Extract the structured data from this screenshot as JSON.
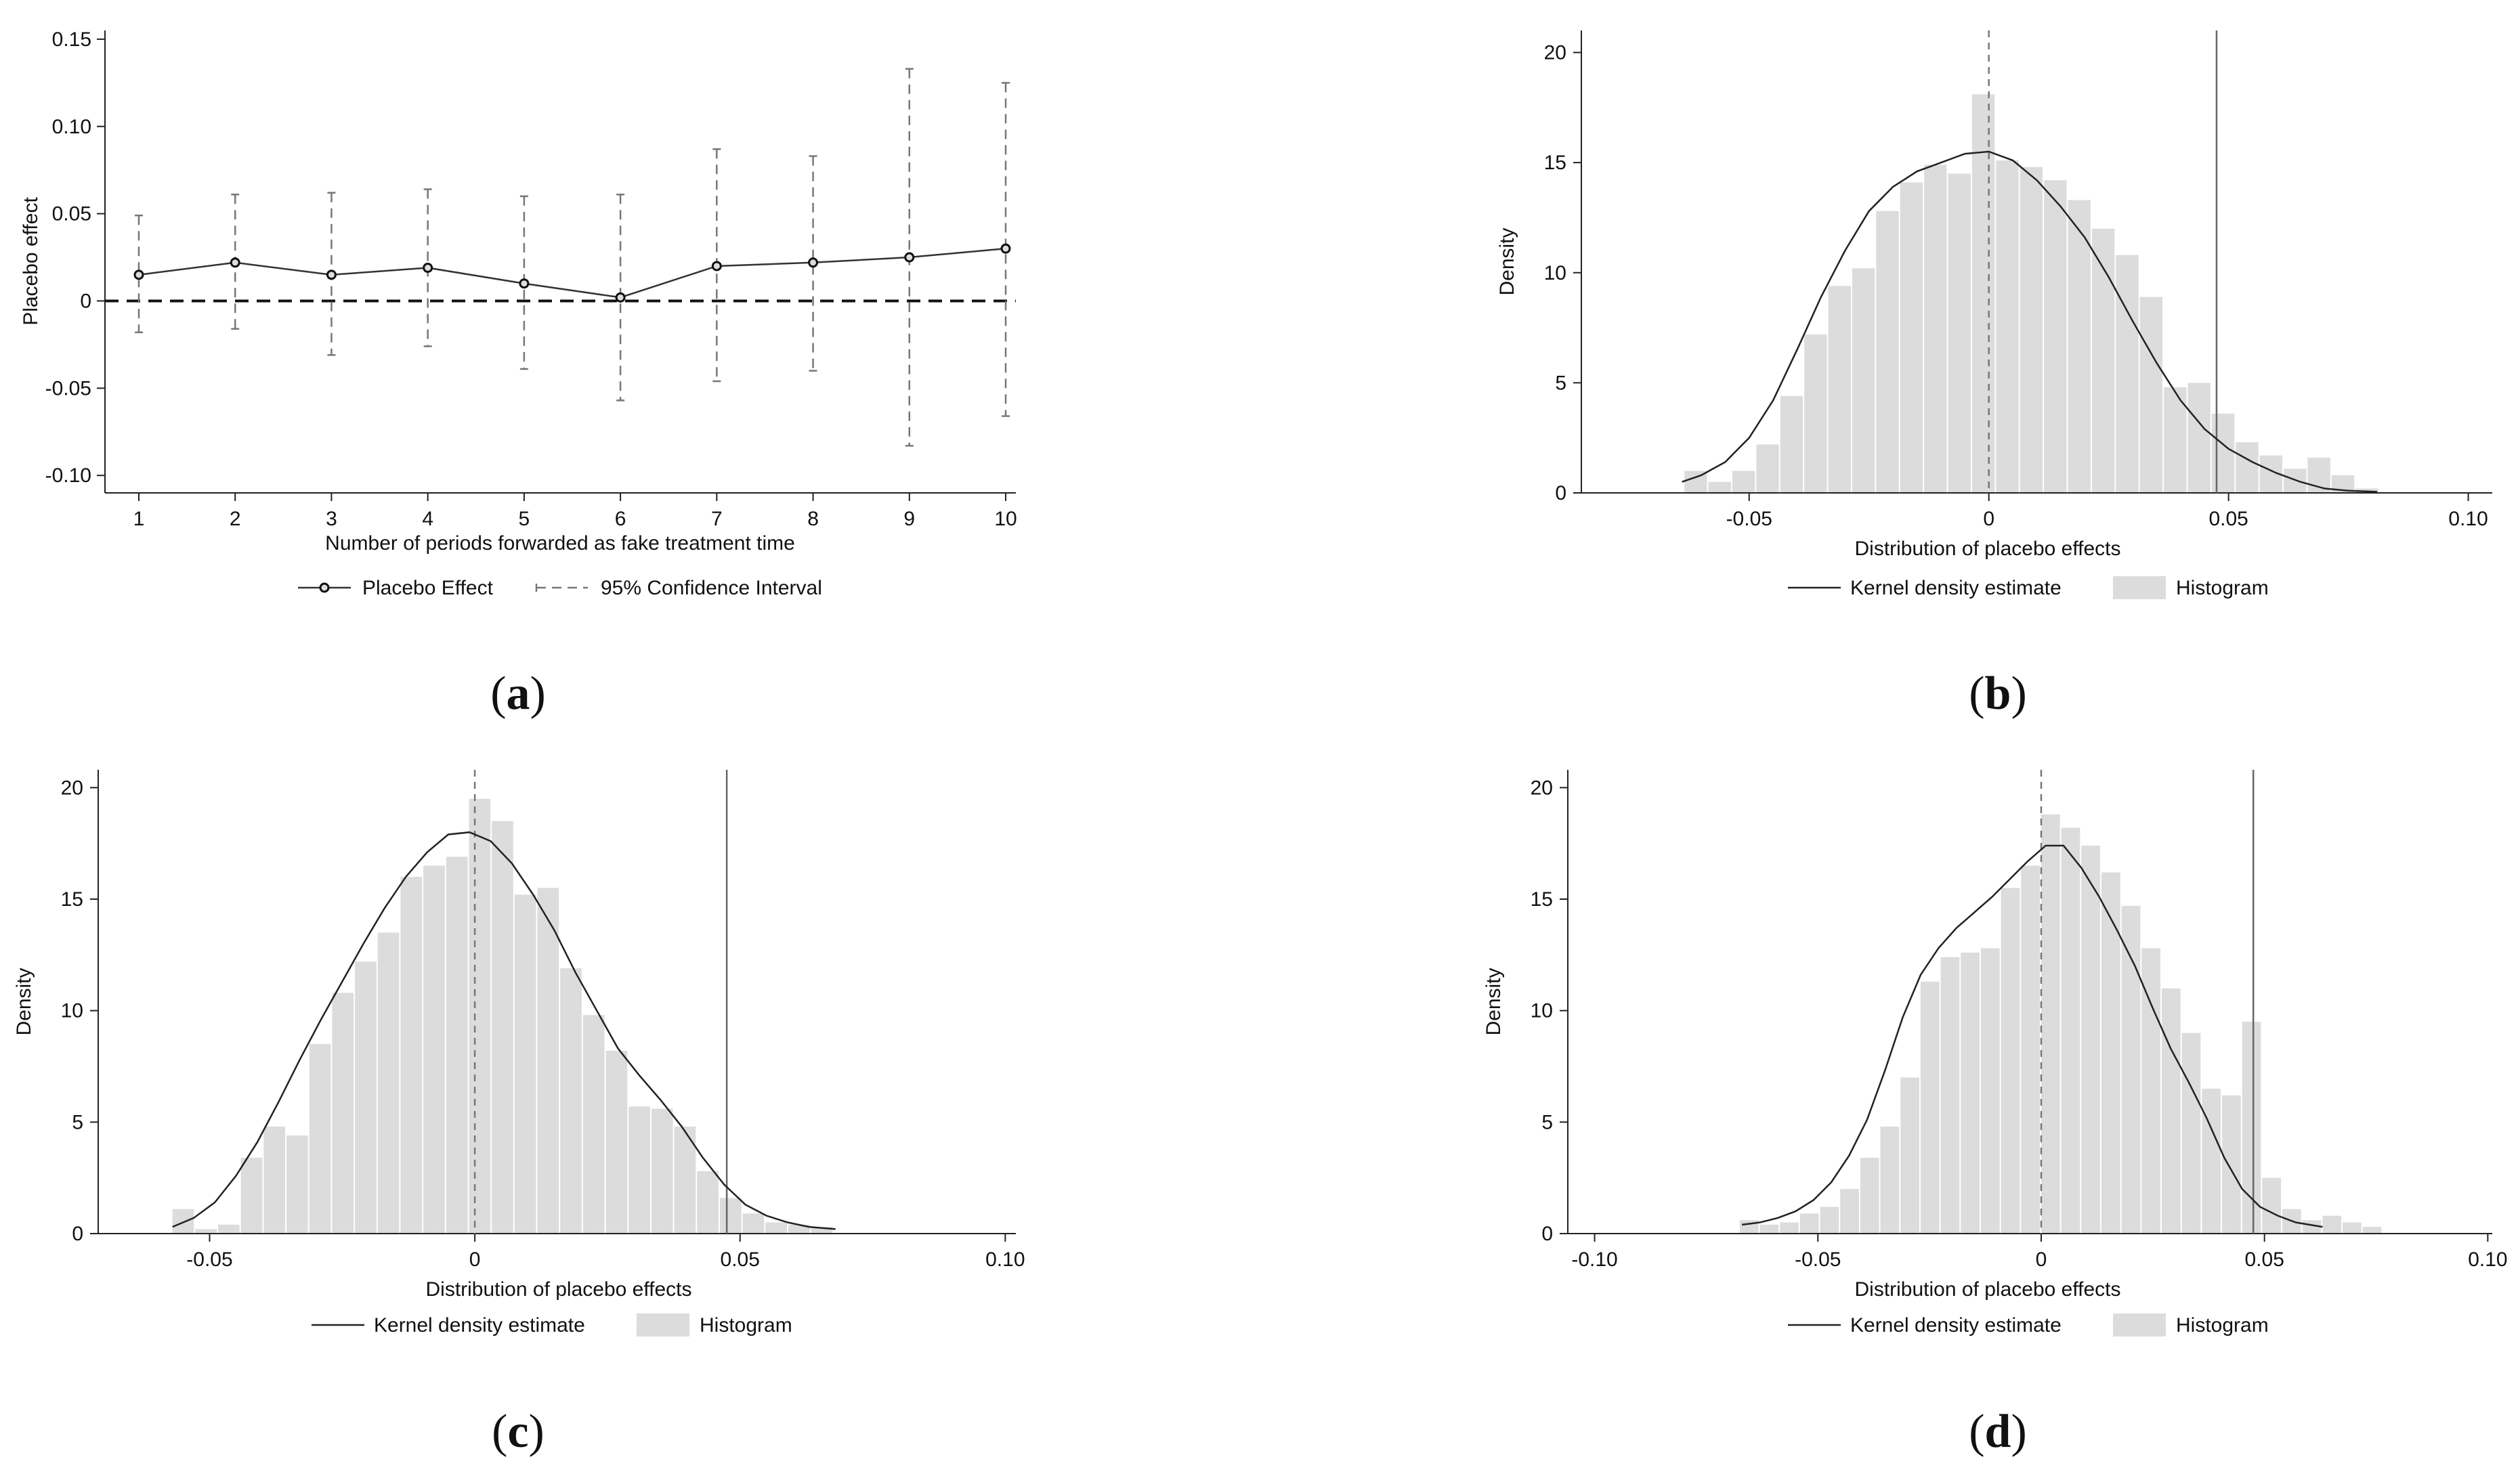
{
  "chart_data": [
    {
      "id": "a",
      "type": "line",
      "caption": "a",
      "xlabel": "Number of periods forwarded as fake treatment time",
      "ylabel": "Placebo effect",
      "x": [
        1,
        2,
        3,
        4,
        5,
        6,
        7,
        8,
        9,
        10
      ],
      "xticks": [
        1,
        2,
        3,
        4,
        5,
        6,
        7,
        8,
        9,
        10
      ],
      "xtick_labels": [
        "1",
        "2",
        "3",
        "4",
        "5",
        "6",
        "7",
        "8",
        "9",
        "10"
      ],
      "ylim": [
        -0.11,
        0.155
      ],
      "yticks": [
        -0.1,
        -0.05,
        0,
        0.05,
        0.1,
        0.15
      ],
      "ytick_labels": [
        "-0.10",
        "-0.05",
        "0",
        "0.05",
        "0.10",
        "0.15"
      ],
      "series": [
        {
          "name": "Placebo Effect",
          "values": [
            0.015,
            0.022,
            0.015,
            0.019,
            0.01,
            0.002,
            0.02,
            0.022,
            0.025,
            0.03
          ]
        },
        {
          "name": "95% Confidence Interval",
          "lower": [
            -0.018,
            -0.016,
            -0.031,
            -0.026,
            -0.039,
            -0.057,
            -0.046,
            -0.04,
            -0.083,
            -0.066
          ],
          "upper": [
            0.049,
            0.061,
            0.062,
            0.064,
            0.06,
            0.061,
            0.087,
            0.083,
            0.133,
            0.125
          ]
        }
      ],
      "reference_line_y": 0,
      "legend": [
        "Placebo Effect",
        "95% Confidence Interval"
      ]
    },
    {
      "id": "b",
      "type": "bar",
      "caption": "b",
      "xlabel": "Distribution of placebo effects",
      "ylabel": "Density",
      "xlim": [
        -0.085,
        0.105
      ],
      "ylim": [
        0,
        21
      ],
      "xticks": [
        -0.05,
        0,
        0.05,
        0.1
      ],
      "xtick_labels": [
        "-0.05",
        "0",
        "0.05",
        "0.10"
      ],
      "yticks": [
        0,
        5,
        10,
        15,
        20
      ],
      "ytick_labels": [
        "0",
        "5",
        "10",
        "15",
        "20"
      ],
      "bin_start": -0.0635,
      "bin_width": 0.005,
      "histogram": [
        1.0,
        0.5,
        1.0,
        2.2,
        4.4,
        7.2,
        9.4,
        10.2,
        12.8,
        14.1,
        14.9,
        14.5,
        18.1,
        15.1,
        14.8,
        14.2,
        13.3,
        12.0,
        10.8,
        8.9,
        4.8,
        5.0,
        3.6,
        2.3,
        1.7,
        1.1,
        1.6,
        0.8,
        0.2
      ],
      "kde_x": [
        -0.064,
        -0.06,
        -0.055,
        -0.05,
        -0.045,
        -0.04,
        -0.035,
        -0.03,
        -0.025,
        -0.02,
        -0.015,
        -0.01,
        -0.005,
        0.0,
        0.005,
        0.01,
        0.015,
        0.02,
        0.025,
        0.03,
        0.035,
        0.04,
        0.045,
        0.05,
        0.055,
        0.06,
        0.065,
        0.07,
        0.075,
        0.081
      ],
      "kde_y": [
        0.5,
        0.8,
        1.4,
        2.5,
        4.2,
        6.5,
        8.9,
        11.0,
        12.8,
        13.9,
        14.6,
        15.0,
        15.4,
        15.5,
        15.1,
        14.2,
        13.0,
        11.6,
        9.8,
        7.8,
        5.9,
        4.2,
        2.9,
        2.0,
        1.4,
        0.9,
        0.5,
        0.2,
        0.1,
        0.05
      ],
      "reference_line_dashed": 0,
      "reference_line_solid": 0.0475,
      "legend": [
        "Kernel density estimate",
        "Histogram"
      ]
    },
    {
      "id": "c",
      "type": "bar",
      "caption": "c",
      "xlabel": "Distribution of placebo effects",
      "ylabel": "Density",
      "xlim": [
        -0.071,
        0.102
      ],
      "ylim": [
        0,
        20.8
      ],
      "xticks": [
        -0.05,
        0,
        0.05,
        0.1
      ],
      "xtick_labels": [
        "-0.05",
        "0",
        "0.05",
        "0.10"
      ],
      "yticks": [
        0,
        5,
        10,
        15,
        20
      ],
      "ytick_labels": [
        "0",
        "5",
        "10",
        "15",
        "20"
      ],
      "bin_start": -0.057,
      "bin_width": 0.0043,
      "histogram": [
        1.1,
        0.2,
        0.4,
        3.4,
        4.8,
        4.4,
        8.5,
        10.8,
        12.2,
        13.5,
        16.0,
        16.5,
        16.9,
        19.5,
        18.5,
        15.2,
        15.5,
        11.9,
        9.8,
        8.2,
        5.7,
        5.6,
        4.8,
        2.8,
        1.6,
        0.9,
        0.5,
        0.4,
        0.3
      ],
      "kde_x": [
        -0.057,
        -0.053,
        -0.049,
        -0.045,
        -0.041,
        -0.037,
        -0.033,
        -0.029,
        -0.025,
        -0.021,
        -0.017,
        -0.013,
        -0.009,
        -0.005,
        -0.001,
        0.003,
        0.007,
        0.011,
        0.015,
        0.019,
        0.023,
        0.027,
        0.031,
        0.035,
        0.039,
        0.043,
        0.047,
        0.051,
        0.055,
        0.059,
        0.063,
        0.068
      ],
      "kde_y": [
        0.3,
        0.7,
        1.4,
        2.6,
        4.1,
        5.9,
        7.8,
        9.6,
        11.3,
        13.0,
        14.6,
        16.0,
        17.1,
        17.9,
        18.0,
        17.6,
        16.6,
        15.2,
        13.6,
        11.7,
        10.0,
        8.3,
        7.1,
        6.0,
        4.8,
        3.4,
        2.2,
        1.3,
        0.8,
        0.5,
        0.3,
        0.2
      ],
      "reference_line_dashed": 0,
      "reference_line_solid": 0.0475,
      "legend": [
        "Kernel density estimate",
        "Histogram"
      ]
    },
    {
      "id": "d",
      "type": "bar",
      "caption": "d",
      "xlabel": "Distribution of placebo effects",
      "ylabel": "Density",
      "xlim": [
        -0.106,
        0.101
      ],
      "ylim": [
        0,
        20.8
      ],
      "xticks": [
        -0.1,
        -0.05,
        0,
        0.05,
        0.1
      ],
      "xtick_labels": [
        "-0.10",
        "-0.05",
        "0",
        "0.05",
        "0.10"
      ],
      "yticks": [
        0,
        5,
        10,
        15,
        20
      ],
      "ytick_labels": [
        "0",
        "5",
        "10",
        "15",
        "20"
      ],
      "bin_start": -0.0675,
      "bin_width": 0.0045,
      "histogram": [
        0.6,
        0.4,
        0.5,
        0.9,
        1.2,
        2.0,
        3.4,
        4.8,
        7.0,
        11.3,
        12.4,
        12.6,
        12.8,
        15.5,
        16.5,
        18.8,
        18.2,
        17.4,
        16.2,
        14.7,
        12.8,
        11.0,
        9.0,
        6.5,
        6.2,
        9.5,
        2.5,
        1.1,
        0.6,
        0.8,
        0.5,
        0.3
      ],
      "kde_x": [
        -0.067,
        -0.063,
        -0.059,
        -0.055,
        -0.051,
        -0.047,
        -0.043,
        -0.039,
        -0.035,
        -0.031,
        -0.027,
        -0.023,
        -0.019,
        -0.015,
        -0.011,
        -0.007,
        -0.003,
        0.001,
        0.005,
        0.009,
        0.013,
        0.017,
        0.021,
        0.025,
        0.029,
        0.033,
        0.037,
        0.041,
        0.045,
        0.049,
        0.053,
        0.057,
        0.063
      ],
      "kde_y": [
        0.4,
        0.5,
        0.7,
        1.0,
        1.5,
        2.3,
        3.5,
        5.1,
        7.3,
        9.7,
        11.6,
        12.8,
        13.7,
        14.4,
        15.1,
        15.9,
        16.7,
        17.4,
        17.4,
        16.4,
        15.1,
        13.6,
        12.0,
        10.1,
        8.3,
        6.8,
        5.2,
        3.4,
        2.0,
        1.2,
        0.8,
        0.5,
        0.3
      ],
      "reference_line_dashed": 0,
      "reference_line_solid": 0.0475,
      "legend": [
        "Kernel density estimate",
        "Histogram"
      ]
    }
  ]
}
